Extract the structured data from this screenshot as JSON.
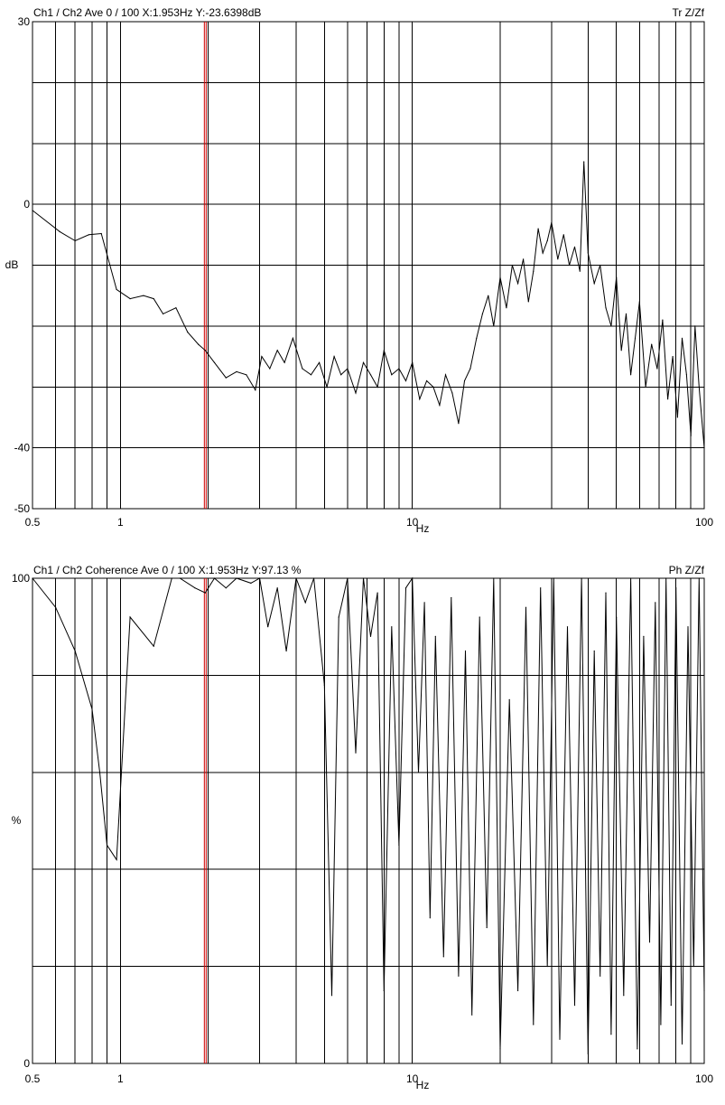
{
  "chart_data": [
    {
      "type": "line",
      "status_text": "Ch1 / Ch2  Ave 0 / 100  X:1.953Hz  Y:-23.6398dB",
      "mode_label": "Tr Z/Zf",
      "ylabel": "dB",
      "xlabel": "Hz",
      "x_scale": "log",
      "xlim": [
        0.5,
        100
      ],
      "ylim": [
        -50,
        30
      ],
      "y_ticks": [
        30,
        0,
        -40,
        -50
      ],
      "y_tick_labels": [
        "30",
        "0",
        "-40",
        "-50"
      ],
      "y_grid": [
        30,
        20,
        10,
        0,
        -10,
        -20,
        -30,
        -40,
        -50
      ],
      "x_tick_labels": [
        {
          "v": 0.5,
          "t": "0.5"
        },
        {
          "v": 1,
          "t": "1"
        },
        {
          "v": 10,
          "t": "10"
        },
        {
          "v": 100,
          "t": "100"
        }
      ],
      "cursor_x": 1.953,
      "cursor_color": "#cc0000",
      "series": [
        {
          "x": [
            0.5,
            0.62,
            0.7,
            0.78,
            0.86,
            0.97,
            1.08,
            1.2,
            1.3,
            1.4,
            1.55,
            1.7,
            1.85,
            1.953,
            2.1,
            2.3,
            2.5,
            2.7,
            2.9,
            3.05,
            3.25,
            3.45,
            3.65,
            3.9,
            4.2,
            4.5,
            4.8,
            5.1,
            5.4,
            5.7,
            6.0,
            6.4,
            6.8,
            7.2,
            7.6,
            8.0,
            8.5,
            9.0,
            9.5,
            10.0,
            10.6,
            11.2,
            11.8,
            12.4,
            13.0,
            13.7,
            14.4,
            15.1,
            15.8,
            16.6,
            17.4,
            18.2,
            19.0,
            20.0,
            21.0,
            22.0,
            23.0,
            24.0,
            25.0,
            26.0,
            27.0,
            28.0,
            29.0,
            30.0,
            31.5,
            33.0,
            34.5,
            36.0,
            37.5,
            38.7,
            40.0,
            42.0,
            44.0,
            46.0,
            48.0,
            50.0,
            52.0,
            54.0,
            56.0,
            58.0,
            60.0,
            63.0,
            66.0,
            69.0,
            72.0,
            75.0,
            78.0,
            81.0,
            84.0,
            87.0,
            90.0,
            93.0,
            96.0,
            100.0
          ],
          "y": [
            -1,
            -4.5,
            -6,
            -5,
            -4.8,
            -14,
            -15.5,
            -15,
            -15.5,
            -18,
            -17,
            -21,
            -23,
            -24,
            -26,
            -28.5,
            -27.5,
            -28,
            -30.5,
            -25,
            -27,
            -24,
            -26,
            -22,
            -27,
            -28,
            -26,
            -30,
            -25,
            -28,
            -27,
            -31,
            -26,
            -28,
            -30,
            -24,
            -28,
            -27,
            -29,
            -26,
            -32,
            -29,
            -30,
            -33,
            -28,
            -31,
            -36,
            -29,
            -27,
            -22,
            -18,
            -15,
            -20,
            -12,
            -17,
            -10,
            -13,
            -9,
            -16,
            -11,
            -4,
            -8,
            -6,
            -3,
            -9,
            -5,
            -10,
            -7,
            -11,
            7,
            -8,
            -13,
            -10,
            -17,
            -20,
            -12,
            -24,
            -18,
            -28,
            -22,
            -16,
            -30,
            -23,
            -27,
            -19,
            -32,
            -25,
            -35,
            -22,
            -28,
            -38,
            -20,
            -30,
            -40
          ]
        }
      ]
    },
    {
      "type": "line",
      "status_text": "Ch1 / Ch2  Coherence Ave 0 / 100  X:1.953Hz  Y:97.13 %",
      "mode_label": "Ph Z/Zf",
      "ylabel": "%",
      "xlabel": "Hz",
      "x_scale": "log",
      "xlim": [
        0.5,
        100
      ],
      "ylim": [
        0,
        100
      ],
      "y_ticks": [
        100,
        0
      ],
      "y_tick_labels": [
        "100",
        "0"
      ],
      "y_grid": [
        100,
        80,
        60,
        40,
        20,
        0
      ],
      "x_tick_labels": [
        {
          "v": 0.5,
          "t": "0.5"
        },
        {
          "v": 1,
          "t": "1"
        },
        {
          "v": 10,
          "t": "10"
        },
        {
          "v": 100,
          "t": "100"
        }
      ],
      "cursor_x": 1.953,
      "cursor_color": "#cc0000",
      "series": [
        {
          "x": [
            0.5,
            0.6,
            0.7,
            0.8,
            0.85,
            0.9,
            0.97,
            1.08,
            1.3,
            1.5,
            1.6,
            1.8,
            1.953,
            2.1,
            2.3,
            2.5,
            2.8,
            3.0,
            3.2,
            3.45,
            3.7,
            4.0,
            4.3,
            4.6,
            5.0,
            5.3,
            5.6,
            6.0,
            6.4,
            6.8,
            7.2,
            7.6,
            8.0,
            8.5,
            9.0,
            9.5,
            10.0,
            10.5,
            11.0,
            11.5,
            12.0,
            12.8,
            13.6,
            14.4,
            15.2,
            16.0,
            17.0,
            18.0,
            19.0,
            20.0,
            21.5,
            23.0,
            24.5,
            26.0,
            27.5,
            29.0,
            30.5,
            32.0,
            34.0,
            36.0,
            38.0,
            40.0,
            42.0,
            44.0,
            46.0,
            48.0,
            50.0,
            53.0,
            56.0,
            59.0,
            62.0,
            65.0,
            68.0,
            71.0,
            74.0,
            77.0,
            80.0,
            84.0,
            88.0,
            92.0,
            96.0,
            100.0
          ],
          "y": [
            100,
            94,
            85,
            73,
            60,
            45,
            42,
            92,
            86,
            100,
            100,
            98,
            97,
            100,
            98,
            100,
            99,
            100,
            90,
            98,
            85,
            100,
            95,
            100,
            78,
            14,
            92,
            100,
            64,
            100,
            88,
            97,
            15,
            90,
            45,
            98,
            100,
            60,
            95,
            30,
            88,
            22,
            96,
            18,
            85,
            10,
            92,
            28,
            100,
            3,
            75,
            15,
            94,
            8,
            98,
            20,
            100,
            5,
            90,
            12,
            100,
            2,
            85,
            18,
            97,
            6,
            92,
            14,
            100,
            3,
            88,
            25,
            95,
            8,
            100,
            12,
            98,
            4,
            90,
            20,
            100,
            15
          ]
        }
      ]
    }
  ]
}
